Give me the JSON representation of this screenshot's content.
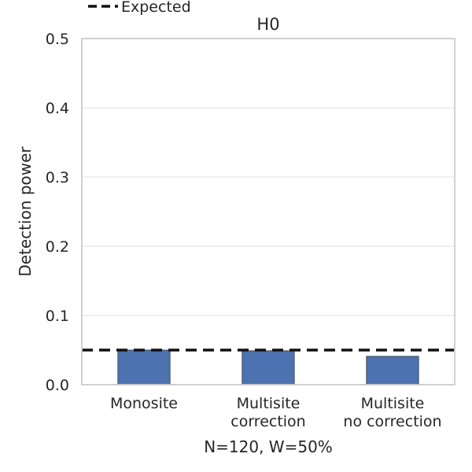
{
  "chart_data": {
    "type": "bar",
    "title": "H0",
    "xlabel": "N=120, W=50%",
    "ylabel": "Detection power",
    "categories": [
      [
        "Monosite"
      ],
      [
        "Multisite",
        "correction"
      ],
      [
        "Multisite",
        "no correction"
      ]
    ],
    "values": [
      0.05,
      0.049,
      0.041
    ],
    "ylim": [
      0,
      0.5
    ],
    "yticks": [
      "0.0",
      "0.1",
      "0.2",
      "0.3",
      "0.4",
      "0.5"
    ],
    "reference_line": {
      "label": "Expected",
      "value": 0.05,
      "style": "dashed",
      "color": "#111111"
    },
    "grid": "horizontal",
    "legend_placement": "top-left",
    "bar_color": "#4c72b0",
    "grid_color": "#e6e6e6",
    "spine_color": "#cccccc"
  }
}
